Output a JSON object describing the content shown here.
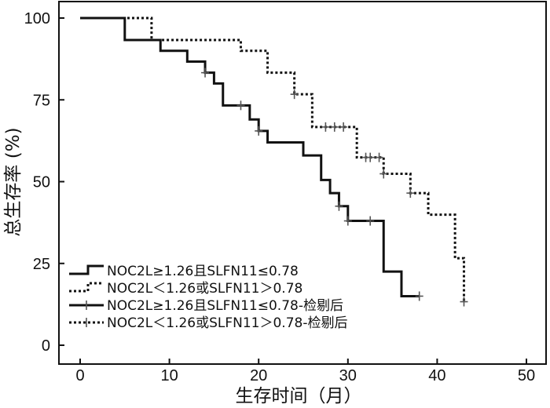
{
  "chart_data": {
    "type": "line",
    "subtype": "kaplan-meier",
    "xlabel": "生存时间（月）",
    "ylabel": "总生存率 (%)",
    "xlim": [
      0,
      50
    ],
    "ylim": [
      0,
      100
    ],
    "xticks": [
      0,
      10,
      20,
      30,
      40,
      50
    ],
    "yticks": [
      0,
      25,
      50,
      75,
      100
    ],
    "grid": false,
    "legend_position": "bottom-left",
    "series": [
      {
        "name": "NOC2L≥1.26且SLFN11≤0.78",
        "censored_name": "NOC2L≥1.26且SLFN11≤0.78-检剔后",
        "line_style": "solid",
        "color": "#111111",
        "steps": [
          [
            0,
            100
          ],
          [
            5,
            93.3
          ],
          [
            9,
            90
          ],
          [
            12,
            86.7
          ],
          [
            14,
            83.3
          ],
          [
            15,
            80
          ],
          [
            16,
            73.3
          ],
          [
            19,
            69
          ],
          [
            20,
            65.5
          ],
          [
            21,
            62
          ],
          [
            25,
            58
          ],
          [
            27,
            50.5
          ],
          [
            28,
            46.5
          ],
          [
            29,
            42.5
          ],
          [
            30,
            38
          ],
          [
            34,
            22.5
          ],
          [
            36,
            15
          ],
          [
            38,
            15
          ]
        ],
        "censored": [
          [
            14,
            83.3
          ],
          [
            18,
            73.3
          ],
          [
            20,
            65.5
          ],
          [
            29,
            42.5
          ],
          [
            30,
            38
          ],
          [
            32.5,
            38
          ],
          [
            38,
            15
          ]
        ]
      },
      {
        "name": "NOC2L＜1.26或SLFN11＞0.78",
        "censored_name": "NOC2L＜1.26或SLFN11＞0.78-检剔后",
        "line_style": "dotted",
        "color": "#111111",
        "steps": [
          [
            0,
            100
          ],
          [
            8,
            93.3
          ],
          [
            18,
            90
          ],
          [
            21,
            83.3
          ],
          [
            24,
            76.7
          ],
          [
            26,
            66.7
          ],
          [
            31,
            57.4
          ],
          [
            34,
            52.4
          ],
          [
            37,
            46.5
          ],
          [
            39,
            39.9
          ],
          [
            42,
            26.6
          ],
          [
            43,
            13.3
          ]
        ],
        "censored": [
          [
            24,
            76.7
          ],
          [
            27.5,
            66.7
          ],
          [
            28.5,
            66.7
          ],
          [
            29.5,
            66.7
          ],
          [
            32,
            57.4
          ],
          [
            32.5,
            57.4
          ],
          [
            33.5,
            57.4
          ],
          [
            34,
            52.4
          ],
          [
            37,
            46.5
          ],
          [
            43,
            13.3
          ]
        ]
      }
    ]
  }
}
